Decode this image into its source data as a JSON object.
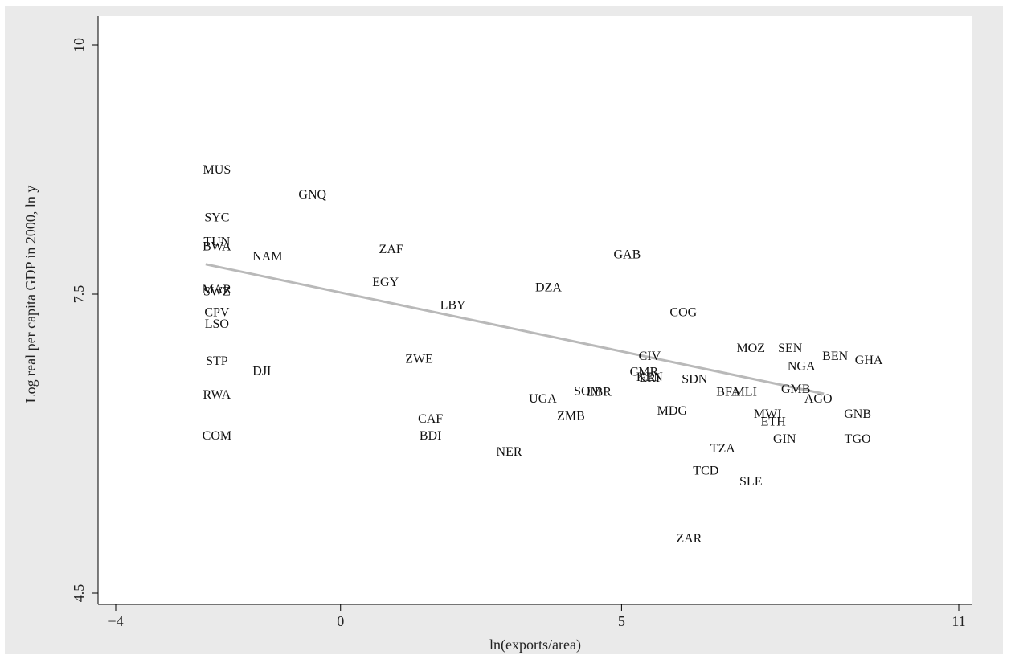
{
  "chart_data": {
    "type": "scatter",
    "title": "",
    "xlabel": "ln(exports/area)",
    "ylabel": "Log real per capita GDP in 2000, ln y",
    "xlim": [
      -4,
      11
    ],
    "ylim": [
      4.5,
      10
    ],
    "xticks": [
      -4,
      0,
      5,
      11
    ],
    "yticks": [
      4.5,
      7.5,
      10
    ],
    "xtick_labels": [
      "−4",
      "0",
      "5",
      "11"
    ],
    "ytick_labels": [
      "4.5",
      "7.5",
      "10"
    ],
    "grid": false,
    "legend": "none",
    "colors": {
      "background": "#eaeaea",
      "plot": "#ffffff",
      "fit_line": "#b9b9b9",
      "text": "#111111"
    },
    "fit_line": {
      "x": [
        -2.4,
        8.6
      ],
      "y": [
        7.8,
        6.5
      ]
    },
    "points": [
      {
        "label": "MUS",
        "x": -2.2,
        "y": 8.75
      },
      {
        "label": "GNQ",
        "x": -0.5,
        "y": 8.5
      },
      {
        "label": "SYC",
        "x": -2.2,
        "y": 8.27
      },
      {
        "label": "TUN",
        "x": -2.2,
        "y": 8.03
      },
      {
        "label": "BWA",
        "x": -2.2,
        "y": 7.98
      },
      {
        "label": "NAM",
        "x": -1.3,
        "y": 7.88
      },
      {
        "label": "ZAF",
        "x": 0.9,
        "y": 7.95
      },
      {
        "label": "GAB",
        "x": 5.1,
        "y": 7.9
      },
      {
        "label": "EGY",
        "x": 0.8,
        "y": 7.62
      },
      {
        "label": "DZA",
        "x": 3.7,
        "y": 7.57
      },
      {
        "label": "MAR",
        "x": -2.2,
        "y": 7.55
      },
      {
        "label": "SWZ",
        "x": -2.2,
        "y": 7.53
      },
      {
        "label": "LBY",
        "x": 2.0,
        "y": 7.39
      },
      {
        "label": "COG",
        "x": 6.1,
        "y": 7.32
      },
      {
        "label": "CPV",
        "x": -2.2,
        "y": 7.32
      },
      {
        "label": "LSO",
        "x": -2.2,
        "y": 7.2
      },
      {
        "label": "MOZ",
        "x": 7.3,
        "y": 6.96
      },
      {
        "label": "SEN",
        "x": 8.0,
        "y": 6.96
      },
      {
        "label": "BEN",
        "x": 8.8,
        "y": 6.88
      },
      {
        "label": "GHA",
        "x": 9.4,
        "y": 6.84
      },
      {
        "label": "CIV",
        "x": 5.5,
        "y": 6.88
      },
      {
        "label": "STP",
        "x": -2.2,
        "y": 6.83
      },
      {
        "label": "ZWE",
        "x": 1.4,
        "y": 6.85
      },
      {
        "label": "NGA",
        "x": 8.2,
        "y": 6.78
      },
      {
        "label": "DJI",
        "x": -1.4,
        "y": 6.73
      },
      {
        "label": "CMR",
        "x": 5.4,
        "y": 6.72
      },
      {
        "label": "KEN",
        "x": 5.5,
        "y": 6.67
      },
      {
        "label": "ERI",
        "x": 5.5,
        "y": 6.66
      },
      {
        "label": "SDN",
        "x": 6.3,
        "y": 6.65
      },
      {
        "label": "GMB",
        "x": 8.1,
        "y": 6.55
      },
      {
        "label": "SOM",
        "x": 4.4,
        "y": 6.53
      },
      {
        "label": "LBR",
        "x": 4.6,
        "y": 6.52
      },
      {
        "label": "BFA",
        "x": 6.9,
        "y": 6.52
      },
      {
        "label": "MLI",
        "x": 7.2,
        "y": 6.52
      },
      {
        "label": "RWA",
        "x": -2.2,
        "y": 6.49
      },
      {
        "label": "UGA",
        "x": 3.6,
        "y": 6.45
      },
      {
        "label": "AGO",
        "x": 8.5,
        "y": 6.45
      },
      {
        "label": "MDG",
        "x": 5.9,
        "y": 6.33
      },
      {
        "label": "ZMB",
        "x": 4.1,
        "y": 6.28
      },
      {
        "label": "MWI",
        "x": 7.6,
        "y": 6.3
      },
      {
        "label": "GNB",
        "x": 9.2,
        "y": 6.3
      },
      {
        "label": "CAF",
        "x": 1.6,
        "y": 6.25
      },
      {
        "label": "ETH",
        "x": 7.7,
        "y": 6.22
      },
      {
        "label": "COM",
        "x": -2.2,
        "y": 6.08
      },
      {
        "label": "BDI",
        "x": 1.6,
        "y": 6.08
      },
      {
        "label": "GIN",
        "x": 7.9,
        "y": 6.05
      },
      {
        "label": "TGO",
        "x": 9.2,
        "y": 6.05
      },
      {
        "label": "TZA",
        "x": 6.8,
        "y": 5.95
      },
      {
        "label": "NER",
        "x": 3.0,
        "y": 5.92
      },
      {
        "label": "TCD",
        "x": 6.5,
        "y": 5.73
      },
      {
        "label": "SLE",
        "x": 7.3,
        "y": 5.62
      },
      {
        "label": "ZAR",
        "x": 6.2,
        "y": 5.05
      }
    ]
  }
}
